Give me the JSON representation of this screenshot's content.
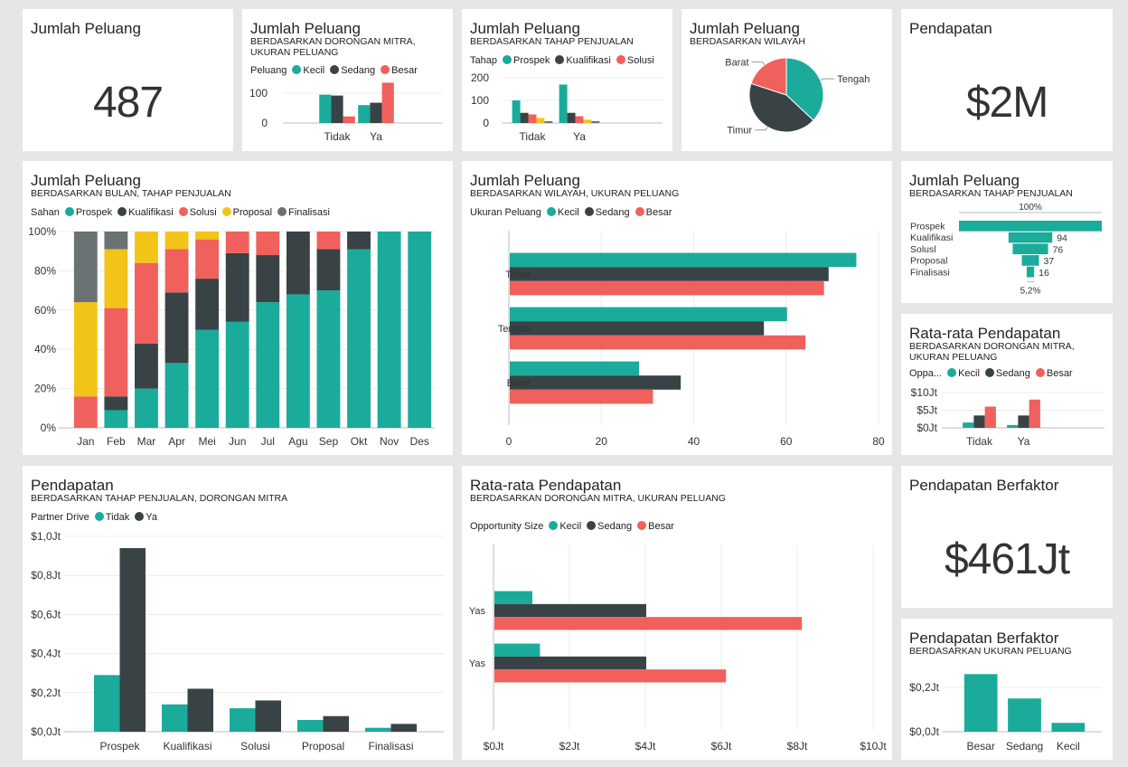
{
  "kpis": [
    {
      "title": "Jumlah Peluang",
      "value": "487"
    },
    {
      "title": "Pendapatan",
      "value": "$2M"
    },
    {
      "title": "Pendapatan Berfaktor",
      "value": "$461Jt"
    }
  ],
  "chart_data": [
    {
      "type": "bar",
      "title": "Jumlah Peluang",
      "subtitle": "BERDASARKAN DORONGAN MITRA, UKURAN PELUANG",
      "legend_title": "Peluang",
      "categories": [
        "Tidak",
        "Ya"
      ],
      "ylim": [
        0,
        150
      ],
      "yticks": [
        {
          "v": 0,
          "label": "0"
        },
        {
          "v": 100,
          "label": "100"
        }
      ],
      "series": [
        {
          "name": "Kecil",
          "color": "#1aab9b",
          "values": [
            95,
            60
          ]
        },
        {
          "name": "Sedang",
          "color": "#394345",
          "values": [
            92,
            68
          ]
        },
        {
          "name": "Besar",
          "color": "#f0605d",
          "values": [
            22,
            135
          ]
        }
      ]
    },
    {
      "type": "bar",
      "title": "Jumlah Peluang",
      "subtitle": "BERDASARKAN TAHAP PENJUALAN",
      "legend_title": "Tahap",
      "legend_count": 3,
      "categories": [
        "Tidak",
        "Ya"
      ],
      "ylim": [
        0,
        200
      ],
      "yticks": [
        {
          "v": 0,
          "label": "0"
        },
        {
          "v": 100,
          "label": "100"
        },
        {
          "v": 200,
          "label": "200"
        }
      ],
      "series": [
        {
          "name": "Prospek",
          "color": "#1aab9b",
          "values": [
            100,
            170
          ]
        },
        {
          "name": "Kualifikasi",
          "color": "#394345",
          "values": [
            45,
            45
          ]
        },
        {
          "name": "Solusi",
          "color": "#f0605d",
          "values": [
            38,
            30
          ]
        },
        {
          "name": "Proposal",
          "color": "#f2c418",
          "values": [
            22,
            15
          ]
        },
        {
          "name": "Finalisasi",
          "color": "#6b7273",
          "values": [
            8,
            8
          ]
        }
      ]
    },
    {
      "type": "pie",
      "title": "Jumlah Peluang",
      "subtitle": "BERDASARKAN WILAYAH",
      "slices": [
        {
          "name": "Tengah",
          "color": "#1aab9b",
          "value": 37
        },
        {
          "name": "Timur",
          "color": "#394345",
          "value": 43
        },
        {
          "name": "Barat",
          "color": "#f0605d",
          "value": 20
        }
      ]
    },
    {
      "type": "bar",
      "stacked": "percent",
      "title": "Jumlah Peluang",
      "subtitle": "BERDASARKAN BULAN, TAHAP PENJUALAN",
      "legend_title": "Sahan",
      "ylim": [
        0,
        100
      ],
      "categories": [
        "Jan",
        "Feb",
        "Mar",
        "Apr",
        "Mei",
        "Jun",
        "Jul",
        "Agu",
        "Sep",
        "Okt",
        "Nov",
        "Des"
      ],
      "yticks": [
        {
          "v": 0,
          "label": "0%"
        },
        {
          "v": 20,
          "label": "20%"
        },
        {
          "v": 40,
          "label": "40%"
        },
        {
          "v": 60,
          "label": "60%"
        },
        {
          "v": 80,
          "label": "80%"
        },
        {
          "v": 100,
          "label": "100%"
        }
      ],
      "series": [
        {
          "name": "Prospek",
          "color": "#1aab9b",
          "values": [
            0,
            9,
            20,
            33,
            50,
            54,
            64,
            68,
            70,
            91,
            100,
            100
          ]
        },
        {
          "name": "Kualifikasi",
          "color": "#394345",
          "values": [
            0,
            7,
            23,
            36,
            26,
            35,
            24,
            32,
            21,
            9,
            0,
            0
          ]
        },
        {
          "name": "Solusi",
          "color": "#f0605d",
          "values": [
            16,
            45,
            41,
            22,
            20,
            11,
            12,
            0,
            9,
            0,
            0,
            0
          ]
        },
        {
          "name": "Proposal",
          "color": "#f2c418",
          "values": [
            48,
            30,
            16,
            9,
            4,
            0,
            0,
            0,
            0,
            0,
            0,
            0
          ]
        },
        {
          "name": "Finalisasi",
          "color": "#6b7273",
          "values": [
            36,
            9,
            0,
            0,
            0,
            0,
            0,
            0,
            0,
            0,
            0,
            0
          ]
        }
      ]
    },
    {
      "type": "bar",
      "orientation": "horizontal",
      "title": "Jumlah Peluang",
      "subtitle": "BERDASARKAN WILAYAH, UKURAN PELUANG",
      "legend_title": "Ukuran Peluang",
      "categories": [
        "Timur",
        "Tengah",
        "Barat"
      ],
      "xlim": [
        0,
        80
      ],
      "xticks": [
        {
          "v": 0,
          "label": "0"
        },
        {
          "v": 20,
          "label": "20"
        },
        {
          "v": 40,
          "label": "40"
        },
        {
          "v": 60,
          "label": "60"
        },
        {
          "v": 80,
          "label": "80"
        }
      ],
      "series": [
        {
          "name": "Kecil",
          "color": "#1aab9b",
          "values": [
            75,
            60,
            28
          ]
        },
        {
          "name": "Sedang",
          "color": "#394345",
          "values": [
            69,
            55,
            37
          ]
        },
        {
          "name": "Besar",
          "color": "#f0605d",
          "values": [
            68,
            64,
            31
          ]
        }
      ]
    },
    {
      "type": "funnel",
      "title": "Jumlah Peluang",
      "subtitle": "BERDASARKAN TAHAP PENJUALAN",
      "top_label": "100%",
      "bottom_label": "5,2%",
      "color": "#1aab9b",
      "stages": [
        {
          "name": "Prospek",
          "value": 307,
          "label": ""
        },
        {
          "name": "Kualifikasi",
          "value": 94,
          "label": "94"
        },
        {
          "name": "Solusl",
          "value": 76,
          "label": "76"
        },
        {
          "name": "Proposal",
          "value": 37,
          "label": "37"
        },
        {
          "name": "Finalisasi",
          "value": 16,
          "label": "16"
        }
      ]
    },
    {
      "type": "bar",
      "title": "Rata-rata Pendapatan",
      "subtitle": "BERDASARKAN DORONGAN MITRA, UKURAN PELUANG",
      "legend_title": "Oppa...",
      "categories": [
        "Tidak",
        "Ya"
      ],
      "ylim": [
        0,
        10
      ],
      "yticks": [
        {
          "v": 0,
          "label": "$0Jt"
        },
        {
          "v": 5,
          "label": "$5Jt"
        },
        {
          "v": 10,
          "label": "$10Jt"
        }
      ],
      "series": [
        {
          "name": "Kecil",
          "color": "#1aab9b",
          "values": [
            1.5,
            0.8
          ]
        },
        {
          "name": "Sedang",
          "color": "#394345",
          "values": [
            3.5,
            3.5
          ]
        },
        {
          "name": "Besar",
          "color": "#f0605d",
          "values": [
            6,
            8
          ]
        }
      ]
    },
    {
      "type": "bar",
      "title": "Pendapatan",
      "subtitle": "BERDASARKAN TAHAP PENJUALAN, DORONGAN MITRA",
      "legend_title": "Partner Drive",
      "categories": [
        "Prospek",
        "Kualifikasi",
        "Solusi",
        "Proposal",
        "Finalisasi"
      ],
      "ylim": [
        0,
        1.0
      ],
      "yticks": [
        {
          "v": 0,
          "label": "$0,0Jt"
        },
        {
          "v": 0.2,
          "label": "$0,2Jt"
        },
        {
          "v": 0.4,
          "label": "$0,4Jt"
        },
        {
          "v": 0.6,
          "label": "$0,6Jt"
        },
        {
          "v": 0.8,
          "label": "$0,8Jt"
        },
        {
          "v": 1.0,
          "label": "$1,0Jt"
        }
      ],
      "series": [
        {
          "name": "Tidak",
          "color": "#1aab9b",
          "values": [
            0.29,
            0.14,
            0.12,
            0.06,
            0.02
          ]
        },
        {
          "name": "Ya",
          "color": "#394345",
          "values": [
            0.94,
            0.22,
            0.16,
            0.08,
            0.04
          ]
        }
      ]
    },
    {
      "type": "bar",
      "orientation": "horizontal",
      "title": "Rata-rata Pendapatan",
      "subtitle": "BERDASARKAN DORONGAN MITRA, UKURAN PELUANG",
      "legend_title": "Opportunity Size",
      "categories": [
        "Yas",
        "Yas"
      ],
      "xlim": [
        0,
        10
      ],
      "xticks": [
        {
          "v": 0,
          "label": "$0Jt"
        },
        {
          "v": 2,
          "label": "$2Jt"
        },
        {
          "v": 4,
          "label": "$4Jt"
        },
        {
          "v": 6,
          "label": "$6Jt"
        },
        {
          "v": 8,
          "label": "$8Jt"
        },
        {
          "v": 10,
          "label": "$10Jt"
        }
      ],
      "series": [
        {
          "name": "Kecil",
          "color": "#1aab9b",
          "values": [
            1.0,
            1.2
          ]
        },
        {
          "name": "Sedang",
          "color": "#394345",
          "values": [
            4.0,
            4.0
          ]
        },
        {
          "name": "Besar",
          "color": "#f0605d",
          "values": [
            8.1,
            6.1
          ]
        }
      ]
    },
    {
      "type": "bar",
      "title": "Pendapatan Berfaktor",
      "subtitle": "BERDASARKAN UKURAN PELUANG",
      "categories": [
        "Besar",
        "Sedang",
        "Kecil"
      ],
      "ylim": [
        0,
        0.3
      ],
      "yticks": [
        {
          "v": 0,
          "label": "$0,0Jt"
        },
        {
          "v": 0.2,
          "label": "$0,2Jt"
        }
      ],
      "series": [
        {
          "name": "Pendapatan Berfaktor",
          "color": "#1aab9b",
          "values": [
            0.26,
            0.15,
            0.04
          ]
        }
      ]
    }
  ]
}
